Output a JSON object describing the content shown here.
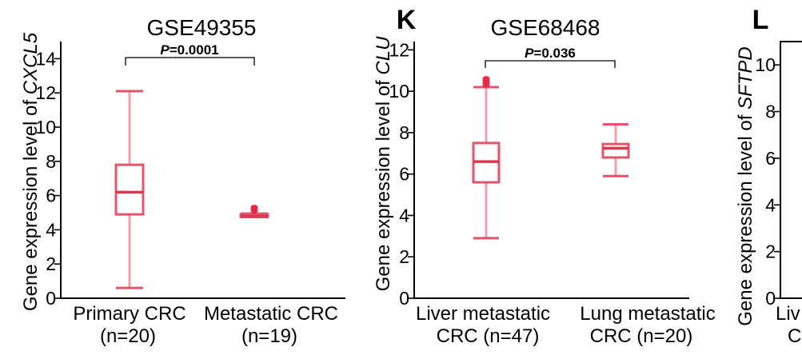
{
  "colors": {
    "box": "#e0556a",
    "whisker": "#efa0ad",
    "median": "#d93a52",
    "outlier": "#e02d45",
    "axis": "#000000"
  },
  "panel_letters": {
    "k": "K",
    "l": "L"
  },
  "chart_data": [
    {
      "type": "box",
      "title": "GSE49355",
      "ylabel_prefix": "Gene expression level of ",
      "gene": "CXCL5",
      "ylim": [
        0,
        15
      ],
      "yticks": [
        "0",
        "2",
        "4",
        "6",
        "8",
        "10",
        "12",
        "14"
      ],
      "categories": [
        {
          "line1": "Primary CRC",
          "line2": "(n=20)"
        },
        {
          "line1": "Metastatic CRC",
          "line2": "(n=19)"
        }
      ],
      "boxes": [
        {
          "min": 0.6,
          "q1": 4.9,
          "median": 6.2,
          "q3": 7.8,
          "max": 12.1,
          "outliers": []
        },
        {
          "min": 4.75,
          "q1": 4.75,
          "median": 4.8,
          "q3": 4.9,
          "max": 4.95,
          "outliers": [
            5.1,
            5.2,
            5.3
          ]
        }
      ],
      "significance": {
        "p_label": "P",
        "p_value": "=0.0001"
      }
    },
    {
      "type": "box",
      "title": "GSE68468",
      "ylabel_prefix": "Gene expression level of ",
      "gene": "CLU",
      "ylim": [
        0,
        12.4
      ],
      "yticks": [
        "0",
        "2",
        "4",
        "6",
        "8",
        "10",
        "12"
      ],
      "categories": [
        {
          "line1": "Liver metastatic",
          "line2": "CRC  (n=47)"
        },
        {
          "line1": "Lung metastatic",
          "line2": "CRC (n=20)"
        }
      ],
      "boxes": [
        {
          "min": 2.9,
          "q1": 5.6,
          "median": 6.6,
          "q3": 7.5,
          "max": 10.2,
          "outliers": [
            10.3,
            10.4,
            10.5,
            10.6
          ]
        },
        {
          "min": 5.9,
          "q1": 6.8,
          "median": 7.25,
          "q3": 7.45,
          "max": 8.4,
          "outliers": []
        }
      ],
      "significance": {
        "p_label": "P",
        "p_value": "=0.036"
      }
    },
    {
      "type": "box",
      "title": "",
      "ylabel_prefix": "Gene expression level of ",
      "gene": "SFTPD",
      "ylim": [
        0,
        11
      ],
      "yticks": [
        "0",
        "2",
        "4",
        "6",
        "8",
        "10"
      ],
      "categories": [
        {
          "line1": "Liv",
          "line2": "C"
        }
      ]
    }
  ]
}
